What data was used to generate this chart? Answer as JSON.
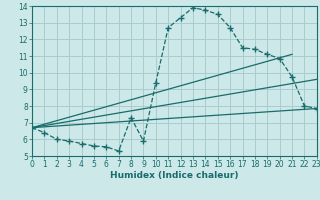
{
  "xlabel": "Humidex (Indice chaleur)",
  "bg_color": "#cce8e8",
  "grid_color": "#aacccc",
  "line_color": "#1a6b6b",
  "xlim": [
    0,
    23
  ],
  "ylim": [
    5,
    14
  ],
  "xticks": [
    0,
    1,
    2,
    3,
    4,
    5,
    6,
    7,
    8,
    9,
    10,
    11,
    12,
    13,
    14,
    15,
    16,
    17,
    18,
    19,
    20,
    21,
    22,
    23
  ],
  "yticks": [
    5,
    6,
    7,
    8,
    9,
    10,
    11,
    12,
    13,
    14
  ],
  "curve_x": [
    0,
    1,
    2,
    3,
    4,
    5,
    6,
    7,
    8,
    9,
    10,
    11,
    12,
    13,
    14,
    15,
    16,
    17,
    18,
    19,
    20,
    21,
    22,
    23
  ],
  "curve_y": [
    6.7,
    6.4,
    6.0,
    5.9,
    5.75,
    5.6,
    5.55,
    5.3,
    7.3,
    5.9,
    9.4,
    12.7,
    13.3,
    13.9,
    13.75,
    13.5,
    12.7,
    11.5,
    11.4,
    11.1,
    10.85,
    9.75,
    8.0,
    7.85
  ],
  "line1_x": [
    0,
    21
  ],
  "line1_y": [
    6.7,
    11.1
  ],
  "line2_x": [
    0,
    23
  ],
  "line2_y": [
    6.7,
    9.6
  ],
  "line3_x": [
    0,
    23
  ],
  "line3_y": [
    6.7,
    7.85
  ]
}
